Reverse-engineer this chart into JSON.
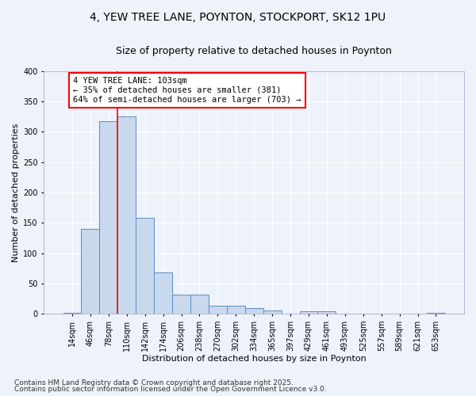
{
  "title1": "4, YEW TREE LANE, POYNTON, STOCKPORT, SK12 1PU",
  "title2": "Size of property relative to detached houses in Poynton",
  "xlabel": "Distribution of detached houses by size in Poynton",
  "ylabel": "Number of detached properties",
  "categories": [
    "14sqm",
    "46sqm",
    "78sqm",
    "110sqm",
    "142sqm",
    "174sqm",
    "206sqm",
    "238sqm",
    "270sqm",
    "302sqm",
    "334sqm",
    "365sqm",
    "397sqm",
    "429sqm",
    "461sqm",
    "493sqm",
    "525sqm",
    "557sqm",
    "589sqm",
    "621sqm",
    "653sqm"
  ],
  "values": [
    2,
    140,
    318,
    325,
    158,
    68,
    32,
    32,
    13,
    13,
    10,
    6,
    0,
    4,
    4,
    0,
    0,
    0,
    0,
    0,
    2
  ],
  "bar_color": "#c9d9ed",
  "bar_edge_color": "#5b8cc8",
  "bar_width": 1.0,
  "red_line_x": 2.5,
  "annotation_text": "4 YEW TREE LANE: 103sqm\n← 35% of detached houses are smaller (381)\n64% of semi-detached houses are larger (703) →",
  "annotation_box_color": "white",
  "annotation_box_edge_color": "red",
  "ylim": [
    0,
    400
  ],
  "yticks": [
    0,
    50,
    100,
    150,
    200,
    250,
    300,
    350,
    400
  ],
  "background_color": "#eef2fb",
  "grid_color": "#ffffff",
  "footer1": "Contains HM Land Registry data © Crown copyright and database right 2025.",
  "footer2": "Contains public sector information licensed under the Open Government Licence v3.0.",
  "title_fontsize": 10,
  "subtitle_fontsize": 9,
  "axis_label_fontsize": 8,
  "tick_fontsize": 7,
  "annotation_fontsize": 7.5,
  "footer_fontsize": 6.5
}
